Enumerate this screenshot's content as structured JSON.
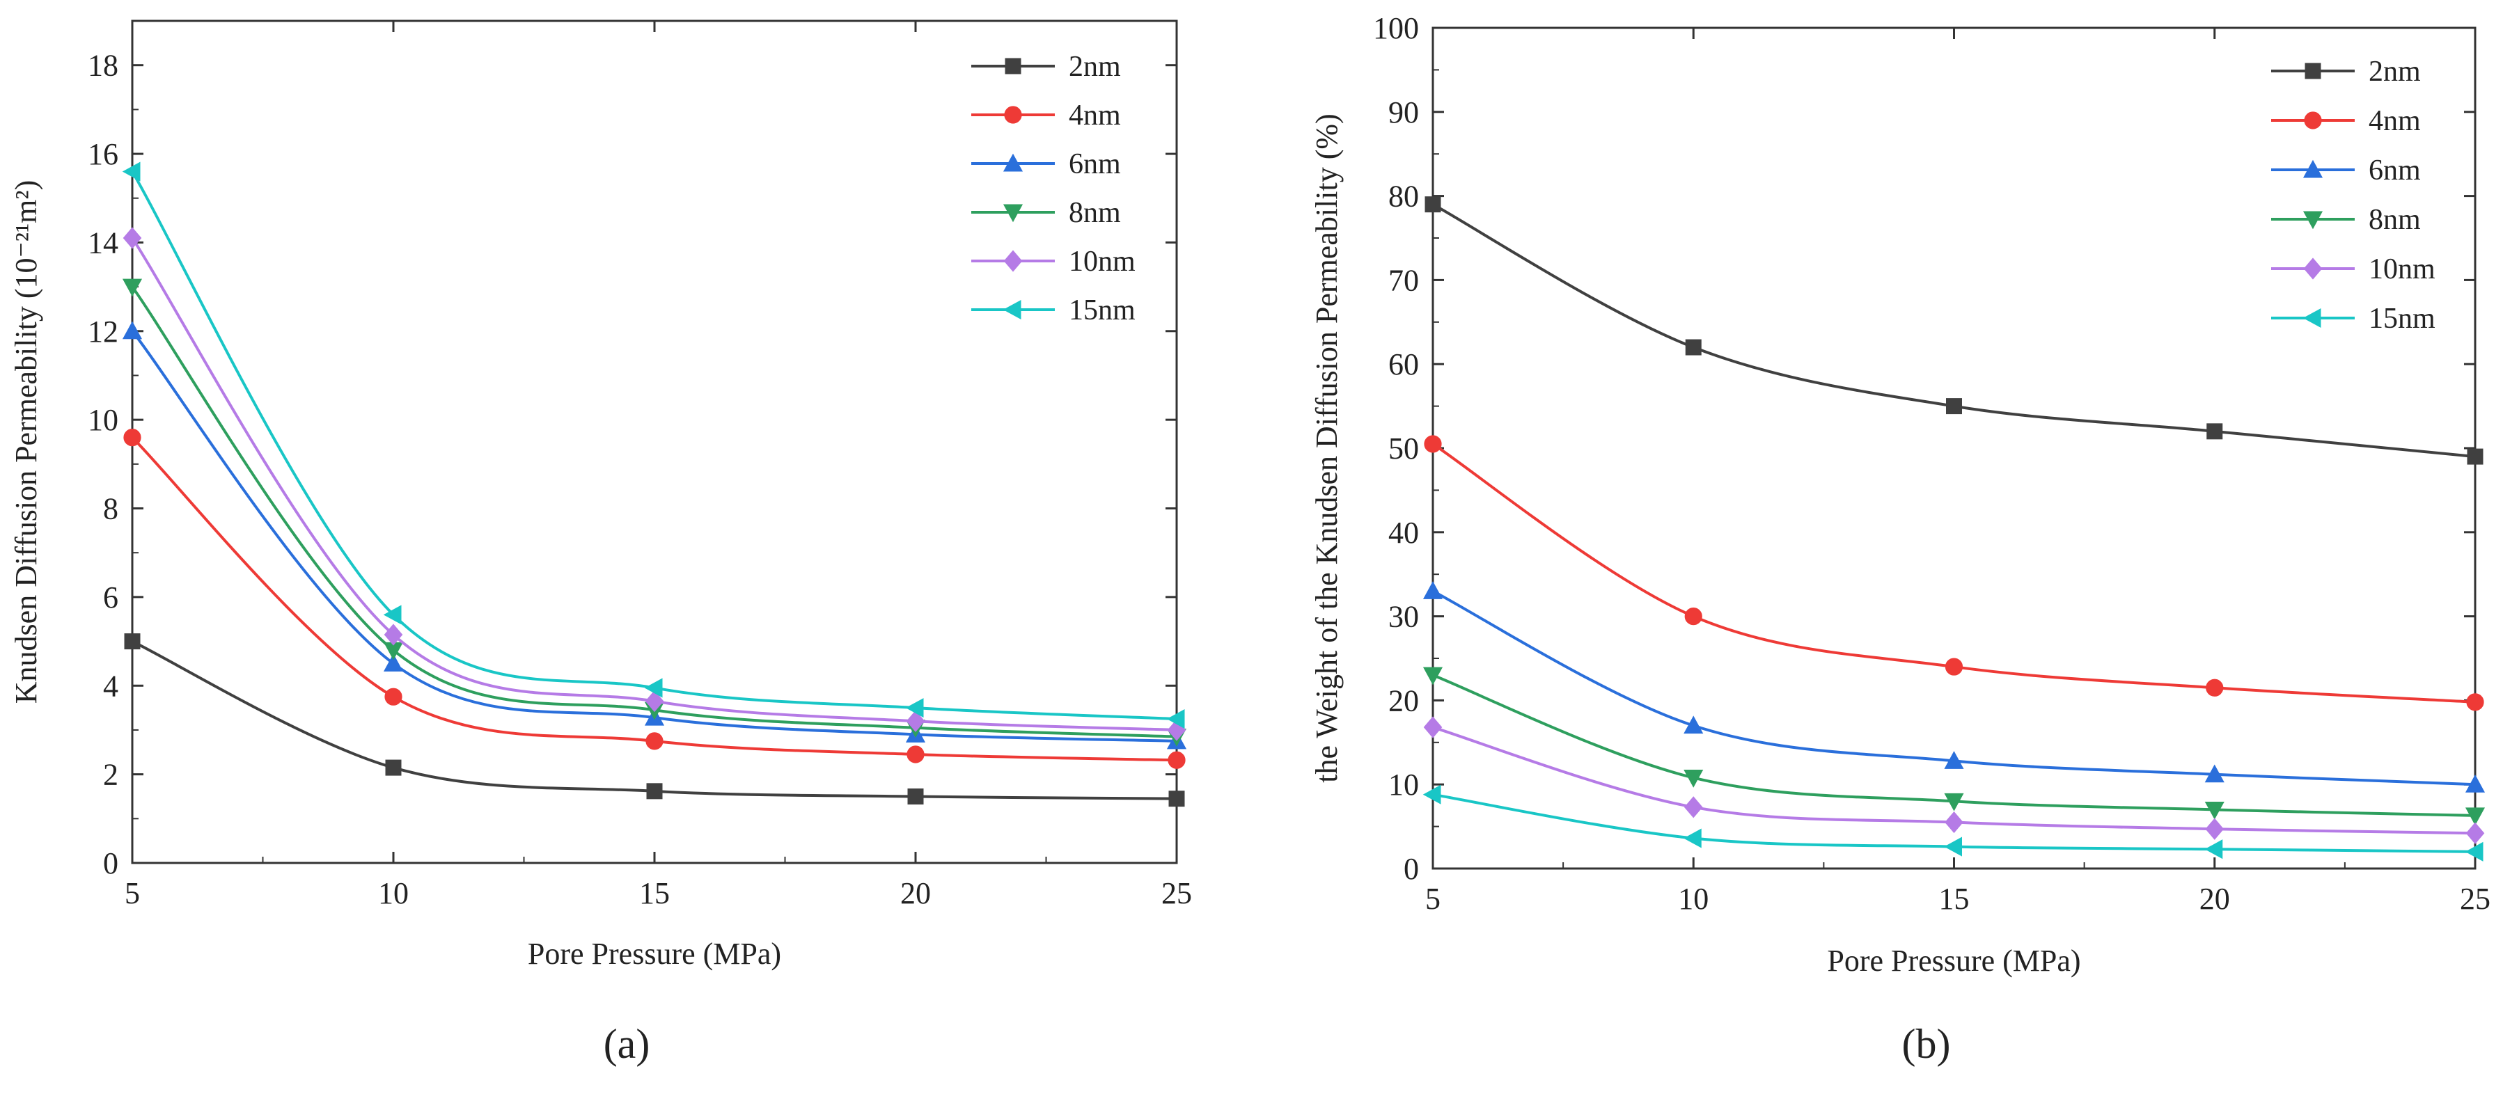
{
  "chart_data": [
    {
      "type": "line",
      "panel_label": "(a)",
      "xlabel": "Pore Pressure (MPa)",
      "ylabel": "Knudsen Diffusion Permeability (10⁻²¹m²)",
      "xlim": [
        5,
        25
      ],
      "ylim": [
        0,
        19
      ],
      "xticks": [
        "5",
        "10",
        "15",
        "20",
        "25"
      ],
      "yticks": [
        "0",
        "2",
        "4",
        "6",
        "8",
        "10",
        "12",
        "14",
        "16",
        "18"
      ],
      "legend_position": "top-right",
      "x": [
        5,
        10,
        15,
        20,
        25
      ],
      "series": [
        {
          "name": "2nm",
          "color": "#404040",
          "marker": "square",
          "values": [
            5.0,
            2.15,
            1.62,
            1.5,
            1.45
          ]
        },
        {
          "name": "4nm",
          "color": "#ee3a36",
          "marker": "circle",
          "values": [
            9.6,
            3.75,
            2.75,
            2.45,
            2.32
          ]
        },
        {
          "name": "6nm",
          "color": "#2a6fdb",
          "marker": "triangle-up",
          "values": [
            12.0,
            4.5,
            3.28,
            2.9,
            2.75
          ]
        },
        {
          "name": "8nm",
          "color": "#2e9f5e",
          "marker": "triangle-down",
          "values": [
            13.0,
            4.8,
            3.45,
            3.05,
            2.85
          ]
        },
        {
          "name": "10nm",
          "color": "#b57be6",
          "marker": "diamond",
          "values": [
            14.1,
            5.15,
            3.65,
            3.2,
            3.0
          ]
        },
        {
          "name": "15nm",
          "color": "#19c6c6",
          "marker": "triangle-left",
          "values": [
            15.6,
            5.6,
            3.95,
            3.5,
            3.25
          ]
        }
      ]
    },
    {
      "type": "line",
      "panel_label": "(b)",
      "xlabel": "Pore Pressure (MPa)",
      "ylabel": "the Weight of the Knudsen Diffusion Permeability (%)",
      "xlim": [
        5,
        25
      ],
      "ylim": [
        0,
        100
      ],
      "xticks": [
        "5",
        "10",
        "15",
        "20",
        "25"
      ],
      "yticks": [
        "0",
        "10",
        "20",
        "30",
        "40",
        "50",
        "60",
        "70",
        "80",
        "90",
        "100"
      ],
      "legend_position": "top-right",
      "x": [
        5,
        10,
        15,
        20,
        25
      ],
      "series": [
        {
          "name": "2nm",
          "color": "#404040",
          "marker": "square",
          "values": [
            79,
            62,
            55,
            52,
            49
          ]
        },
        {
          "name": "4nm",
          "color": "#ee3a36",
          "marker": "circle",
          "values": [
            50.5,
            30,
            24,
            21.5,
            19.8
          ]
        },
        {
          "name": "6nm",
          "color": "#2a6fdb",
          "marker": "triangle-up",
          "values": [
            33,
            17,
            12.8,
            11.2,
            10
          ]
        },
        {
          "name": "8nm",
          "color": "#2e9f5e",
          "marker": "triangle-down",
          "values": [
            23,
            10.8,
            8,
            7,
            6.3
          ]
        },
        {
          "name": "10nm",
          "color": "#b57be6",
          "marker": "diamond",
          "values": [
            16.8,
            7.3,
            5.5,
            4.7,
            4.2
          ]
        },
        {
          "name": "15nm",
          "color": "#19c6c6",
          "marker": "triangle-left",
          "values": [
            8.8,
            3.6,
            2.6,
            2.3,
            2.0
          ]
        }
      ]
    }
  ]
}
